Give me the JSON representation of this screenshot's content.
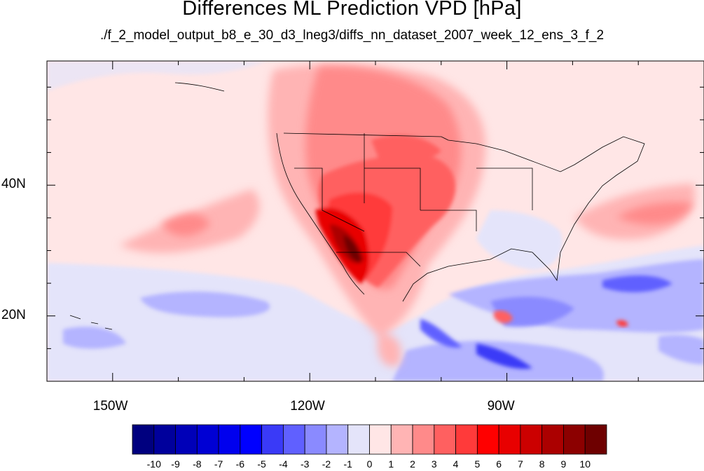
{
  "title": "Differences ML Prediction VPD [hPa]",
  "subtitle": "./f_2_model_output_b8_e_30_d3_lneg3/diffs_nn_dataset_2007_week_12_ens_3_f_2",
  "map": {
    "lon_range": [
      -160,
      -60
    ],
    "lat_range": [
      10,
      59
    ],
    "x_ticks": [
      {
        "lon": -150,
        "label": "150W"
      },
      {
        "lon": -120,
        "label": "120W"
      },
      {
        "lon": -90,
        "label": "90W"
      }
    ],
    "y_ticks": [
      {
        "lat": 40,
        "label": "40N"
      },
      {
        "lat": 20,
        "label": "20N"
      }
    ]
  },
  "colorbar": {
    "labels": [
      "-10",
      "-9",
      "-8",
      "-7",
      "-6",
      "-5",
      "-4",
      "-3",
      "-2",
      "-1",
      "0",
      "1",
      "2",
      "3",
      "4",
      "5",
      "6",
      "7",
      "8",
      "9",
      "10"
    ],
    "colors": [
      "#00007f",
      "#00009c",
      "#0000b8",
      "#0000d4",
      "#0000ee",
      "#0000ff",
      "#3a3af7",
      "#6060ff",
      "#8a8aff",
      "#b4b4ff",
      "#e4e4fa",
      "#ffe6e6",
      "#ffb4b4",
      "#ff8a8a",
      "#ff6060",
      "#ff3a3a",
      "#ff0000",
      "#e80000",
      "#cc0000",
      "#ab0000",
      "#8c0000",
      "#6e0000"
    ]
  }
}
